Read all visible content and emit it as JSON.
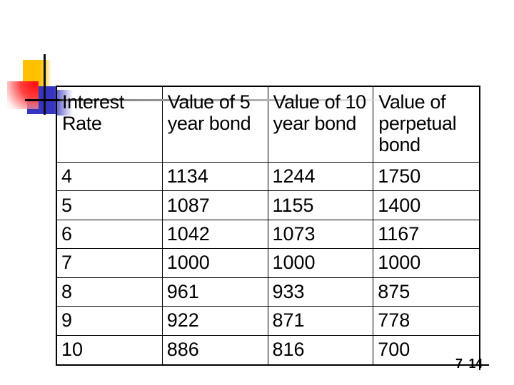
{
  "slide": {
    "page_number_left": "7",
    "page_number_right": "14"
  },
  "decor": {
    "yellow_square_color": "#FFC000",
    "red_square_color": "#FF1A1A",
    "blue_square_color": "#3535C0",
    "gray_line_color": "#808080",
    "border_color": "#000000"
  },
  "table": {
    "columns": [
      "Interest Rate",
      "Value of 5 year bond",
      "Value of 10 year bond",
      "Value of perpetual bond"
    ],
    "rows": [
      [
        "4",
        "1134",
        "1244",
        "1750"
      ],
      [
        "5",
        "1087",
        "1155",
        "1400"
      ],
      [
        "6",
        "1042",
        "1073",
        "1167"
      ],
      [
        "7",
        "1000",
        "1000",
        "1000"
      ],
      [
        "8",
        "961",
        "933",
        "875"
      ],
      [
        "9",
        "922",
        "871",
        "778"
      ],
      [
        "10",
        "886",
        "816",
        "700"
      ]
    ]
  }
}
